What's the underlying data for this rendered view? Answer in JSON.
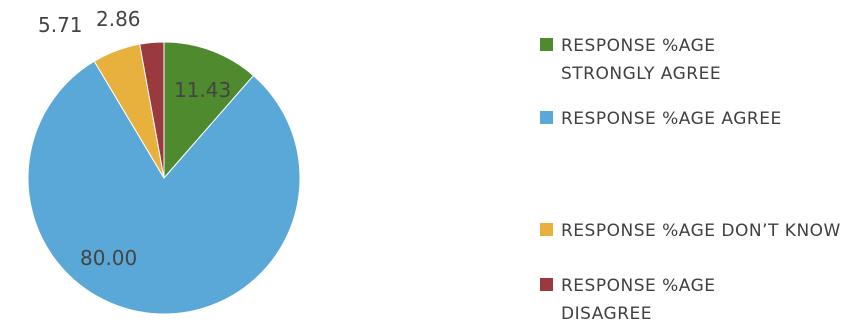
{
  "chart_data": {
    "type": "pie",
    "title": "",
    "slices": [
      {
        "label": "RESPONSE %AGE STRONGLY AGREE",
        "value": 11.43,
        "value_label": "11.43",
        "color": "#4f8a2e"
      },
      {
        "label": "RESPONSE %AGE AGREE",
        "value": 80.0,
        "value_label": "80.00",
        "color": "#5aa8d8"
      },
      {
        "label": "RESPONSE %AGE DON’T KNOW",
        "value": 5.71,
        "value_label": "5.71",
        "color": "#e8b03c"
      },
      {
        "label": "RESPONSE %AGE DISAGREE",
        "value": 2.86,
        "value_label": "2.86",
        "color": "#9b3a3e"
      }
    ],
    "legend_position": "right"
  }
}
